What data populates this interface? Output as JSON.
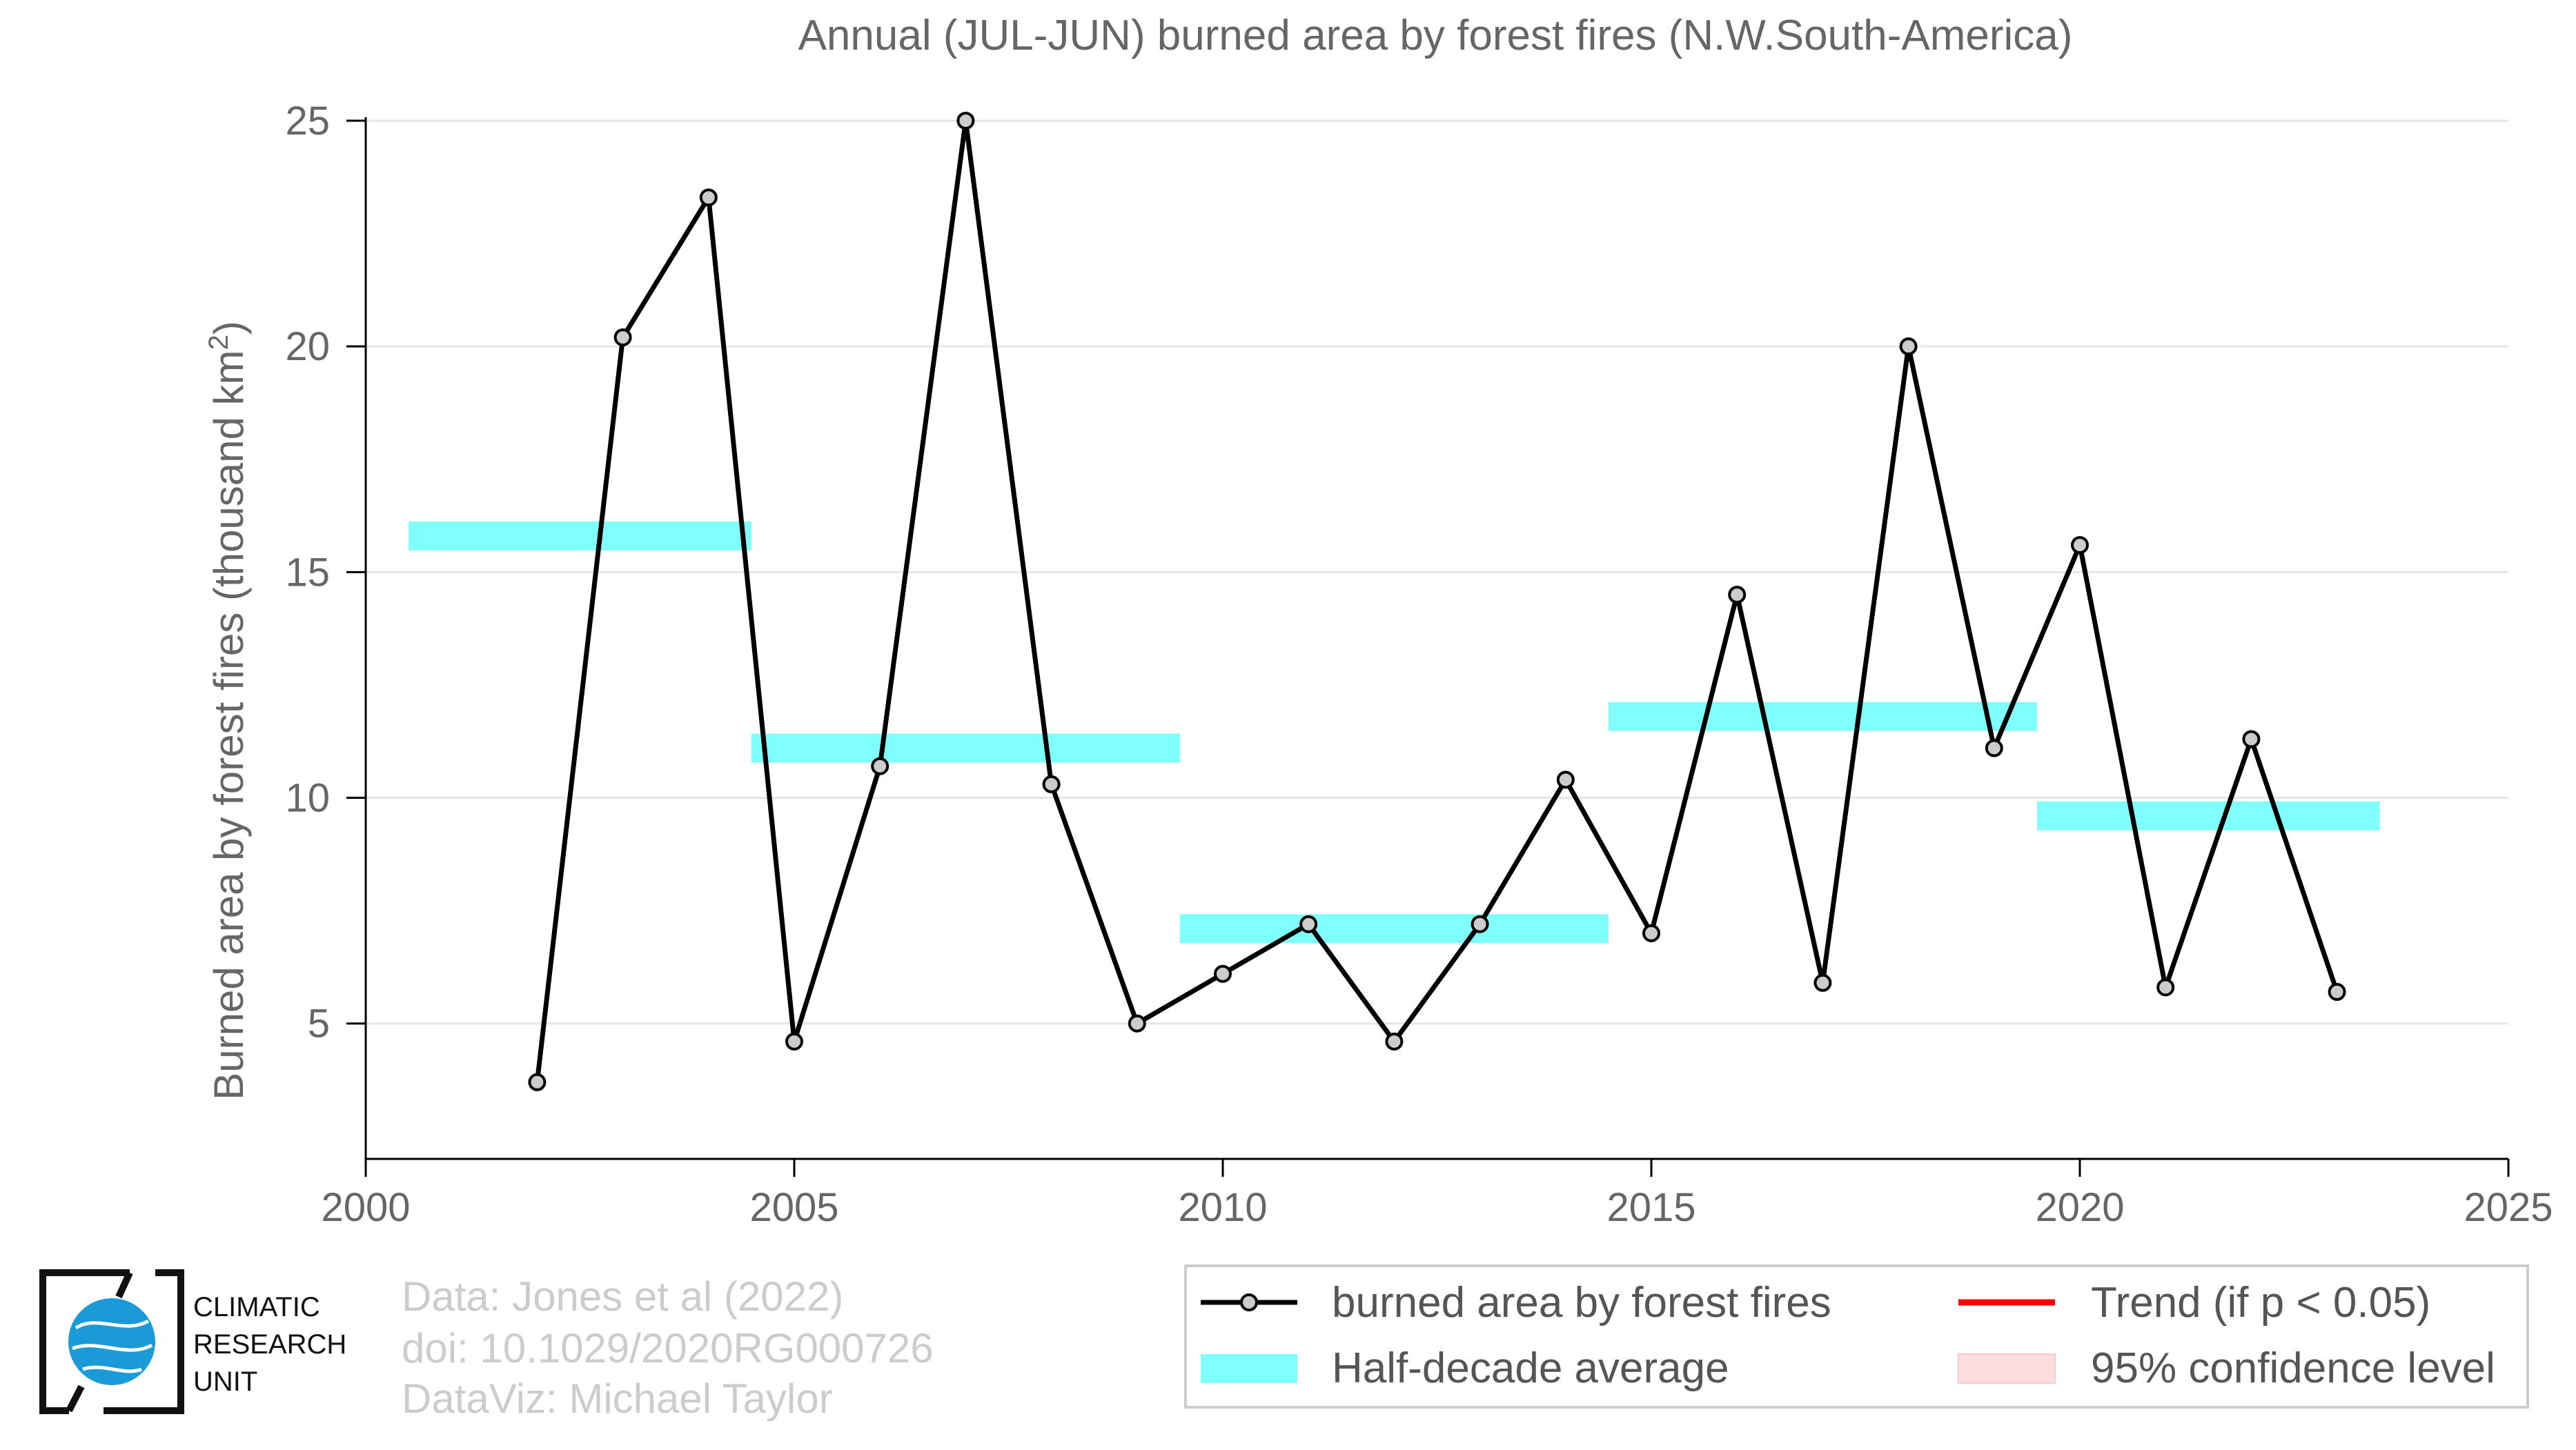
{
  "chart_data": {
    "type": "line",
    "title": "Annual (JUL-JUN) burned area by forest fires (N.W.South-America)",
    "ylabel_main": "Burned area by forest fires (thousand km",
    "ylabel_sup": "2",
    "ylabel_tail": ")",
    "xlim": [
      2000,
      2025
    ],
    "ylim": [
      2,
      25
    ],
    "x_ticks": [
      2000,
      2005,
      2010,
      2015,
      2020,
      2025
    ],
    "y_ticks": [
      5,
      10,
      15,
      20,
      25
    ],
    "grid": "horizontal",
    "series": [
      {
        "name": "burned area by forest fires",
        "color": "#000000",
        "marker_fill": "#cccccc",
        "x": [
          2002,
          2003,
          2004,
          2005,
          2006,
          2007,
          2008,
          2009,
          2010,
          2011,
          2012,
          2013,
          2014,
          2015,
          2016,
          2017,
          2018,
          2019,
          2020,
          2021,
          2022,
          2023
        ],
        "y": [
          3.7,
          20.2,
          23.3,
          4.6,
          10.7,
          25.0,
          10.3,
          5.0,
          6.1,
          7.2,
          4.6,
          7.2,
          10.4,
          7.0,
          14.5,
          5.9,
          20.0,
          11.1,
          15.6,
          5.8,
          11.3,
          5.7
        ]
      }
    ],
    "half_decade_average": {
      "name": "Half-decade average",
      "color": "#80ffff",
      "segments": [
        {
          "x0": 2000.5,
          "x1": 2004.5,
          "y": 15.8
        },
        {
          "x0": 2004.5,
          "x1": 2009.5,
          "y": 11.1
        },
        {
          "x0": 2009.5,
          "x1": 2014.5,
          "y": 7.1
        },
        {
          "x0": 2014.5,
          "x1": 2019.5,
          "y": 11.8
        },
        {
          "x0": 2019.5,
          "x1": 2023.5,
          "y": 9.6
        }
      ]
    },
    "trend": {
      "name": "Trend (if p < 0.05)",
      "color": "#ff0000"
    },
    "confidence": {
      "name": "95% confidence level",
      "color": "#ffdddd"
    },
    "legend_position": "bottom-right"
  },
  "credits": {
    "line1": "Data: Jones et al (2022)",
    "line2": "doi: 10.1029/2020RG000726",
    "line3": "DataViz: Michael Taylor"
  },
  "logo": {
    "line1": "CLIMATIC",
    "line2": "RESEARCH",
    "line3": "UNIT"
  }
}
